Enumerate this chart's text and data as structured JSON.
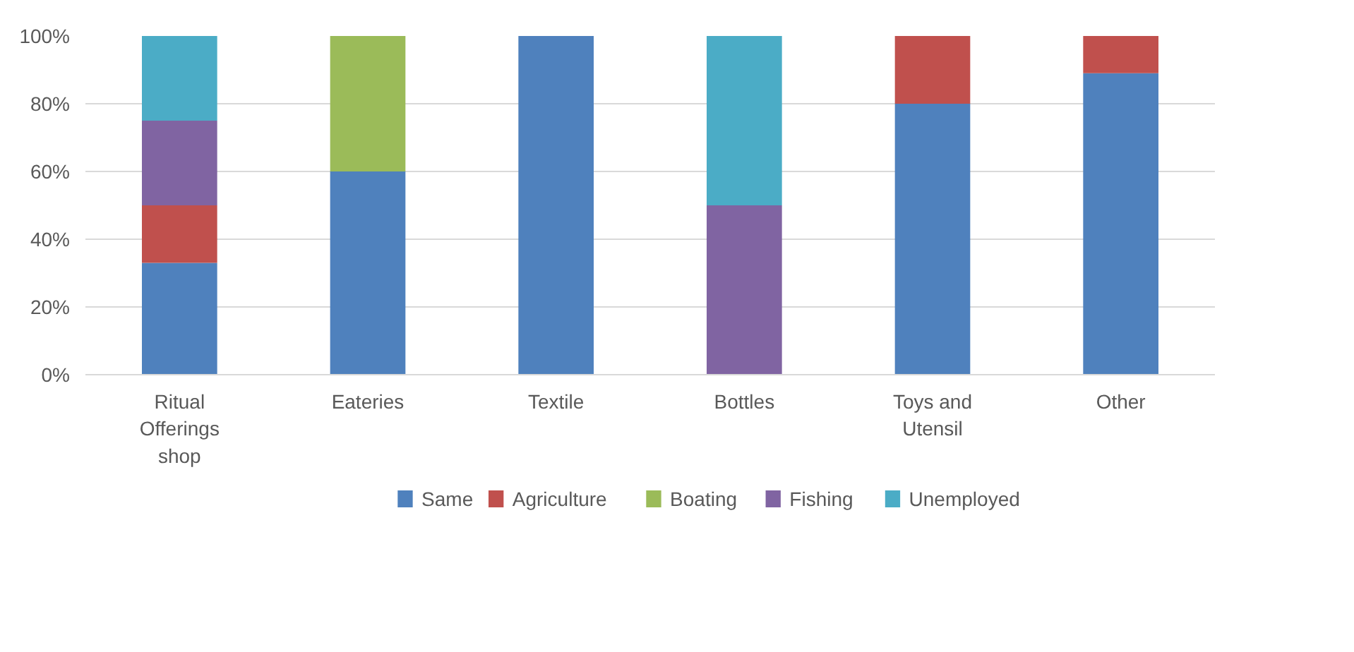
{
  "chart_data": {
    "type": "bar",
    "stacked": true,
    "categories": [
      "Ritual Offerings shop",
      "Eateries",
      "Textile",
      "Bottles",
      "Toys and Utensil",
      "Other"
    ],
    "series": [
      {
        "name": "Same",
        "color": "#4f81bd",
        "values": [
          33,
          60,
          100,
          null,
          80,
          89
        ]
      },
      {
        "name": "Agriculture",
        "color": "#c0504d",
        "values": [
          17,
          null,
          null,
          null,
          20,
          11
        ]
      },
      {
        "name": "Boating",
        "color": "#9bbb59",
        "values": [
          null,
          40,
          null,
          null,
          null,
          null
        ]
      },
      {
        "name": "Fishing",
        "color": "#8064a2",
        "values": [
          25,
          null,
          null,
          50,
          null,
          null
        ]
      },
      {
        "name": "Unemployed",
        "color": "#4bacc6",
        "values": [
          25,
          null,
          null,
          50,
          null,
          null
        ]
      }
    ],
    "ylim": [
      0,
      100
    ],
    "yticks": [
      {
        "value": 0,
        "label": "0%"
      },
      {
        "value": 20,
        "label": "20%"
      },
      {
        "value": 40,
        "label": "40%"
      },
      {
        "value": 60,
        "label": "60%"
      },
      {
        "value": 80,
        "label": "80%"
      },
      {
        "value": 100,
        "label": "100%"
      }
    ],
    "grid": "y",
    "legend": "bottom"
  }
}
